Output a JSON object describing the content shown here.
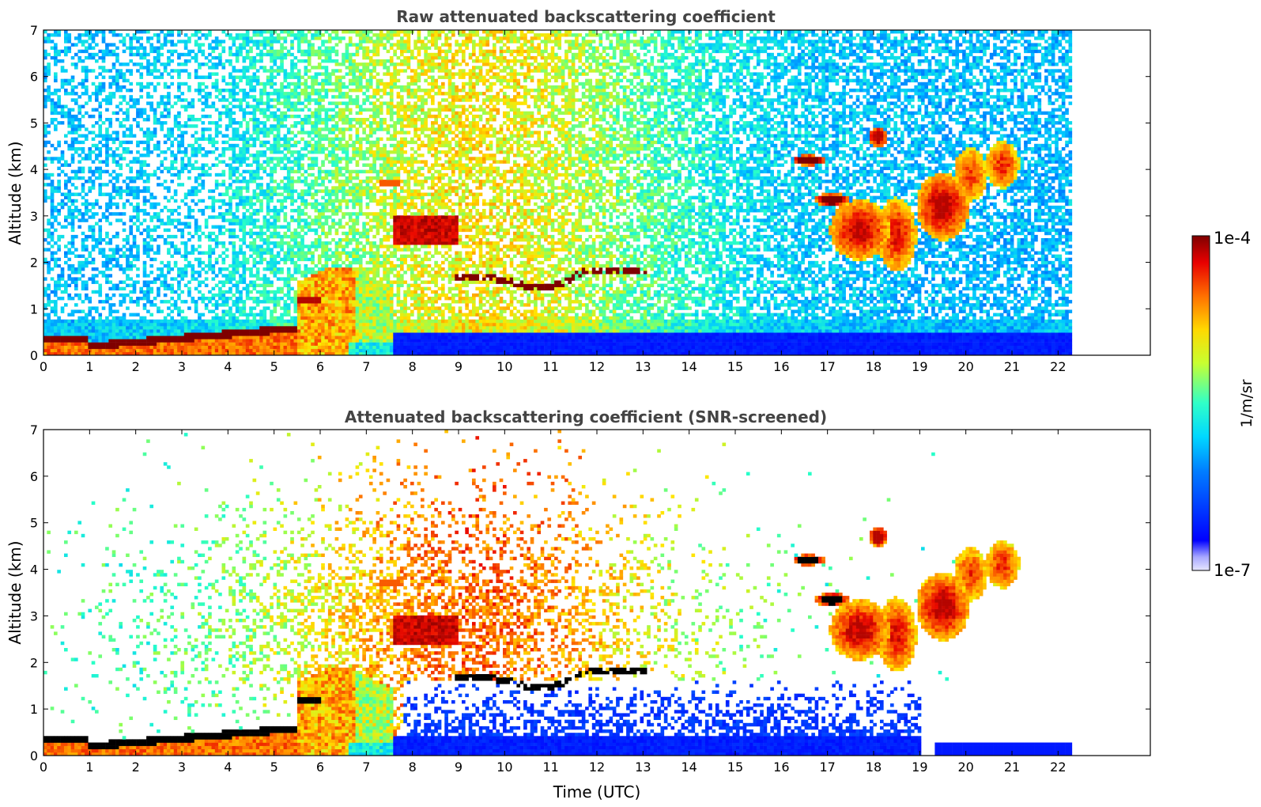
{
  "chart_data": [
    {
      "type": "heatmap",
      "title": "Raw attenuated backscattering coefficient",
      "xlabel": "",
      "ylabel": "Altitude (km)",
      "xlim": [
        0,
        24
      ],
      "ylim": [
        0,
        7
      ],
      "xticks": [
        "0",
        "1",
        "2",
        "3",
        "4",
        "5",
        "6",
        "7",
        "8",
        "9",
        "10",
        "11",
        "12",
        "13",
        "14",
        "15",
        "16",
        "17",
        "18",
        "19",
        "20",
        "21",
        "22"
      ],
      "yticks": [
        "0",
        "1",
        "2",
        "3",
        "4",
        "5",
        "6",
        "7"
      ],
      "data_extent_hours": [
        0,
        22.3
      ],
      "features": [
        {
          "name": "boundary layer top",
          "t": [
            0,
            1,
            2,
            3,
            4,
            5,
            5.5
          ],
          "z": [
            0.3,
            0.2,
            0.35,
            0.35,
            0.45,
            0.55,
            0.6
          ]
        },
        {
          "name": "aerosol plume",
          "t": [
            5.5,
            7.5
          ],
          "z": [
            0.3,
            1.8
          ]
        },
        {
          "name": "thin cloud layer",
          "t": [
            9,
            13
          ],
          "z": [
            1.5,
            1.9
          ]
        },
        {
          "name": "elevated layer",
          "t": [
            7.6,
            9
          ],
          "z": [
            2.4,
            3.0
          ]
        },
        {
          "name": "mid-level clouds",
          "t": [
            16.5,
            21.2
          ],
          "z": [
            1.8,
            5.0
          ]
        }
      ],
      "screened": false
    },
    {
      "type": "heatmap",
      "title": "Attenuated backscattering coefficient (SNR-screened)",
      "xlabel": "Time (UTC)",
      "ylabel": "Altitude (km)",
      "xlim": [
        0,
        24
      ],
      "ylim": [
        0,
        7
      ],
      "xticks": [
        "0",
        "1",
        "2",
        "3",
        "4",
        "5",
        "6",
        "7",
        "8",
        "9",
        "10",
        "11",
        "12",
        "13",
        "14",
        "15",
        "16",
        "17",
        "18",
        "19",
        "20",
        "21",
        "22"
      ],
      "yticks": [
        "0",
        "1",
        "2",
        "3",
        "4",
        "5",
        "6",
        "7"
      ],
      "data_extent_hours": [
        0,
        22.3
      ],
      "screened": true
    }
  ],
  "colorbar": {
    "label": "1/m/sr",
    "max_label": "1e-4",
    "min_label": "1e-7",
    "scale": "log",
    "colormap": "jet"
  },
  "colors": {
    "title": "#444444",
    "low": "#0000ff",
    "high": "#7f0000",
    "saturated_screened": "#000000"
  }
}
